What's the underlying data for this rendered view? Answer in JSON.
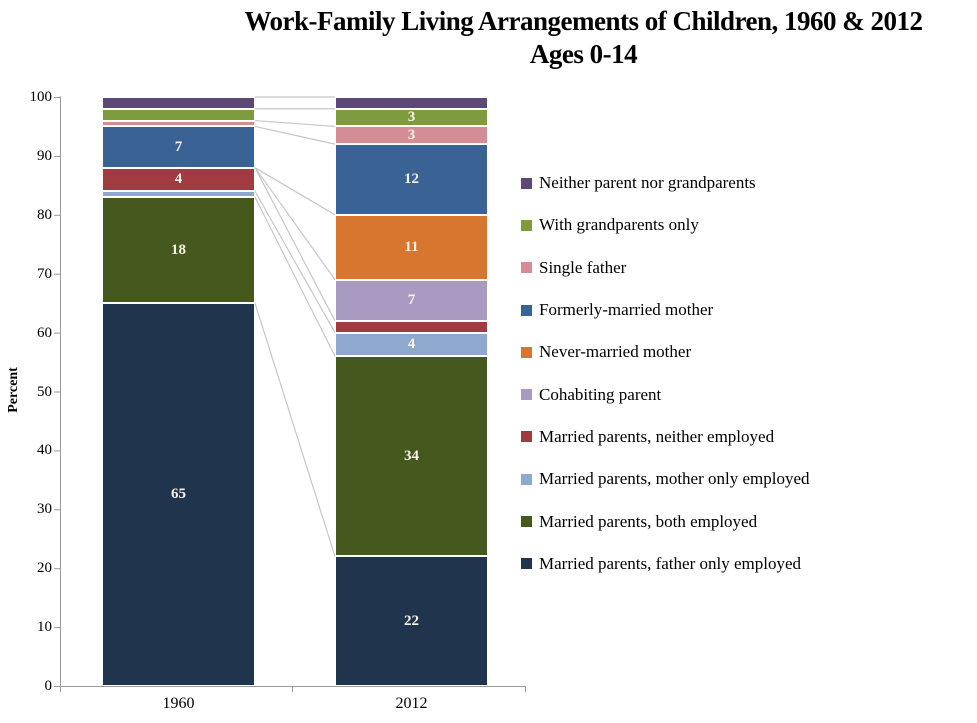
{
  "title": {
    "line1": "Work-Family Living Arrangements of Children, 1960 & 2012",
    "line2": "Ages 0-14"
  },
  "y_axis": {
    "label": "Percent",
    "ticks": [
      0,
      10,
      20,
      30,
      40,
      50,
      60,
      70,
      80,
      90,
      100
    ]
  },
  "x_axis": {
    "categories": [
      "1960",
      "2012"
    ]
  },
  "chart_data": {
    "type": "bar",
    "stacked": true,
    "title": "Work-Family Living Arrangements of Children, 1960 & 2012 — Ages 0-14",
    "xlabel": "",
    "ylabel": "Percent",
    "ylim": [
      0,
      100
    ],
    "grid": false,
    "legend_position": "right",
    "categories": [
      "1960",
      "2012"
    ],
    "series": [
      {
        "name": "Married parents, father only employed",
        "color": "#21344E",
        "values": [
          65,
          22
        ]
      },
      {
        "name": "Married parents, both employed",
        "color": "#45581E",
        "values": [
          18,
          34
        ]
      },
      {
        "name": "Married parents, mother only employed",
        "color": "#8FA9CE",
        "values": [
          1,
          4
        ]
      },
      {
        "name": "Married parents, neither employed",
        "color": "#A03B41",
        "values": [
          4,
          2
        ]
      },
      {
        "name": "Cohabiting parent",
        "color": "#A89AC0",
        "values": [
          0,
          7
        ]
      },
      {
        "name": "Never-married mother",
        "color": "#D8762F",
        "values": [
          0,
          11
        ]
      },
      {
        "name": "Formerly-married mother",
        "color": "#3A6294",
        "values": [
          7,
          12
        ]
      },
      {
        "name": "Single father",
        "color": "#D48D94",
        "values": [
          1,
          3
        ]
      },
      {
        "name": "With grandparents only",
        "color": "#7E9B3E",
        "values": [
          2,
          3
        ]
      },
      {
        "name": "Neither parent nor grandparents",
        "color": "#5C4877",
        "values": [
          2,
          2
        ]
      }
    ],
    "label_min_value": 3,
    "colors": {
      "axis": "#999999",
      "connector": "#C6C6C6",
      "data_label": "#F7F3E8",
      "text": "#000000"
    }
  }
}
